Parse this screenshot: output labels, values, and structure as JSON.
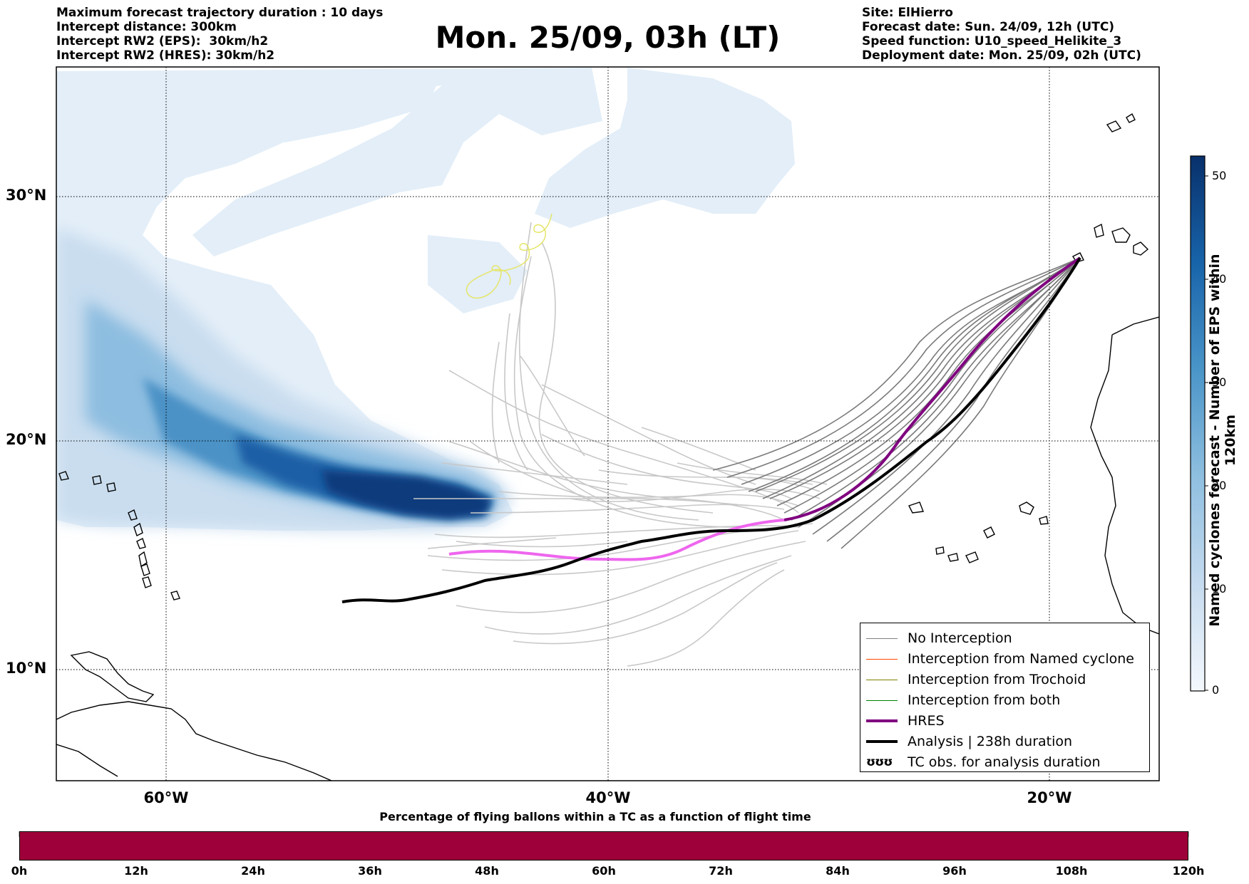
{
  "header_left": [
    "Maximum forecast trajectory duration : 10 days",
    "Intercept distance: 300km",
    "Intercept RW2 (EPS):  30km/h2",
    "Intercept RW2 (HRES): 30km/h2"
  ],
  "title": "Mon. 25/09, 03h (LT)",
  "header_right": [
    "Site: ElHierro",
    "Forecast date: Sun. 24/09, 12h (UTC)",
    "Speed function: U10_speed_Helikite_3",
    "Deployment date: Mon. 25/09, 02h (UTC)"
  ],
  "map": {
    "lat_labels": [
      "30°N",
      "20°N",
      "10°N"
    ],
    "lon_labels": [
      "60°W",
      "40°W",
      "20°W"
    ]
  },
  "colorbar": {
    "label": "Named cyclones forecast - Number of EPS within 120km",
    "ticks": [
      "50",
      "40",
      "30",
      "20",
      "10",
      "0"
    ],
    "min_color": "#eef4fb",
    "max_color": "#08306b"
  },
  "legend": {
    "items": [
      {
        "label": "No Interception",
        "color": "#808080"
      },
      {
        "label": "Interception from Named cyclone",
        "color": "#ff4500"
      },
      {
        "label": "Interception from Trochoid",
        "color": "#808000"
      },
      {
        "label": "Interception from both",
        "color": "#008000"
      },
      {
        "label": "HRES",
        "color": "#800080"
      },
      {
        "label": "Analysis | 238h duration",
        "color": "#000000"
      },
      {
        "label": "TC obs. for analysis duration",
        "glyph": "ʊʊʊ"
      }
    ]
  },
  "flight_bar": {
    "title": "Percentage of flying ballons within a TC as a function of flight time",
    "color": "#9e0039",
    "ticks": [
      "0h",
      "12h",
      "24h",
      "36h",
      "48h",
      "60h",
      "72h",
      "84h",
      "96h",
      "108h",
      "120h"
    ]
  }
}
